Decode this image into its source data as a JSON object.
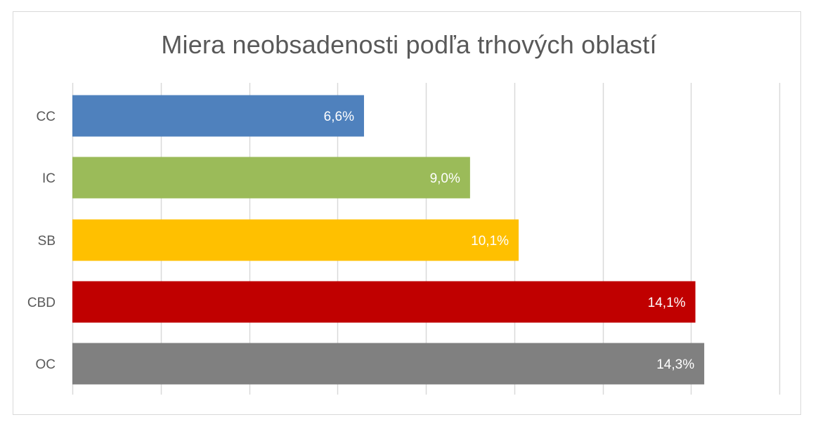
{
  "chart_data": {
    "type": "bar",
    "orientation": "horizontal",
    "title": "Miera neobsadenosti podľa trhových oblastí",
    "categories": [
      "CC",
      "IC",
      "SB",
      "CBD",
      "OC"
    ],
    "values": [
      6.6,
      9.0,
      10.1,
      14.1,
      14.3
    ],
    "value_labels": [
      "6,6%",
      "9,0%",
      "10,1%",
      "14,1%",
      "14,3%"
    ],
    "colors": [
      "#4f81bd",
      "#9bbb59",
      "#ffc000",
      "#c00000",
      "#808080"
    ],
    "xlim": [
      0,
      16
    ],
    "x_gridlines": [
      0,
      2,
      4,
      6,
      8,
      10,
      12,
      14,
      16
    ],
    "grid": true,
    "legend": "none",
    "xlabel": "",
    "ylabel": ""
  }
}
